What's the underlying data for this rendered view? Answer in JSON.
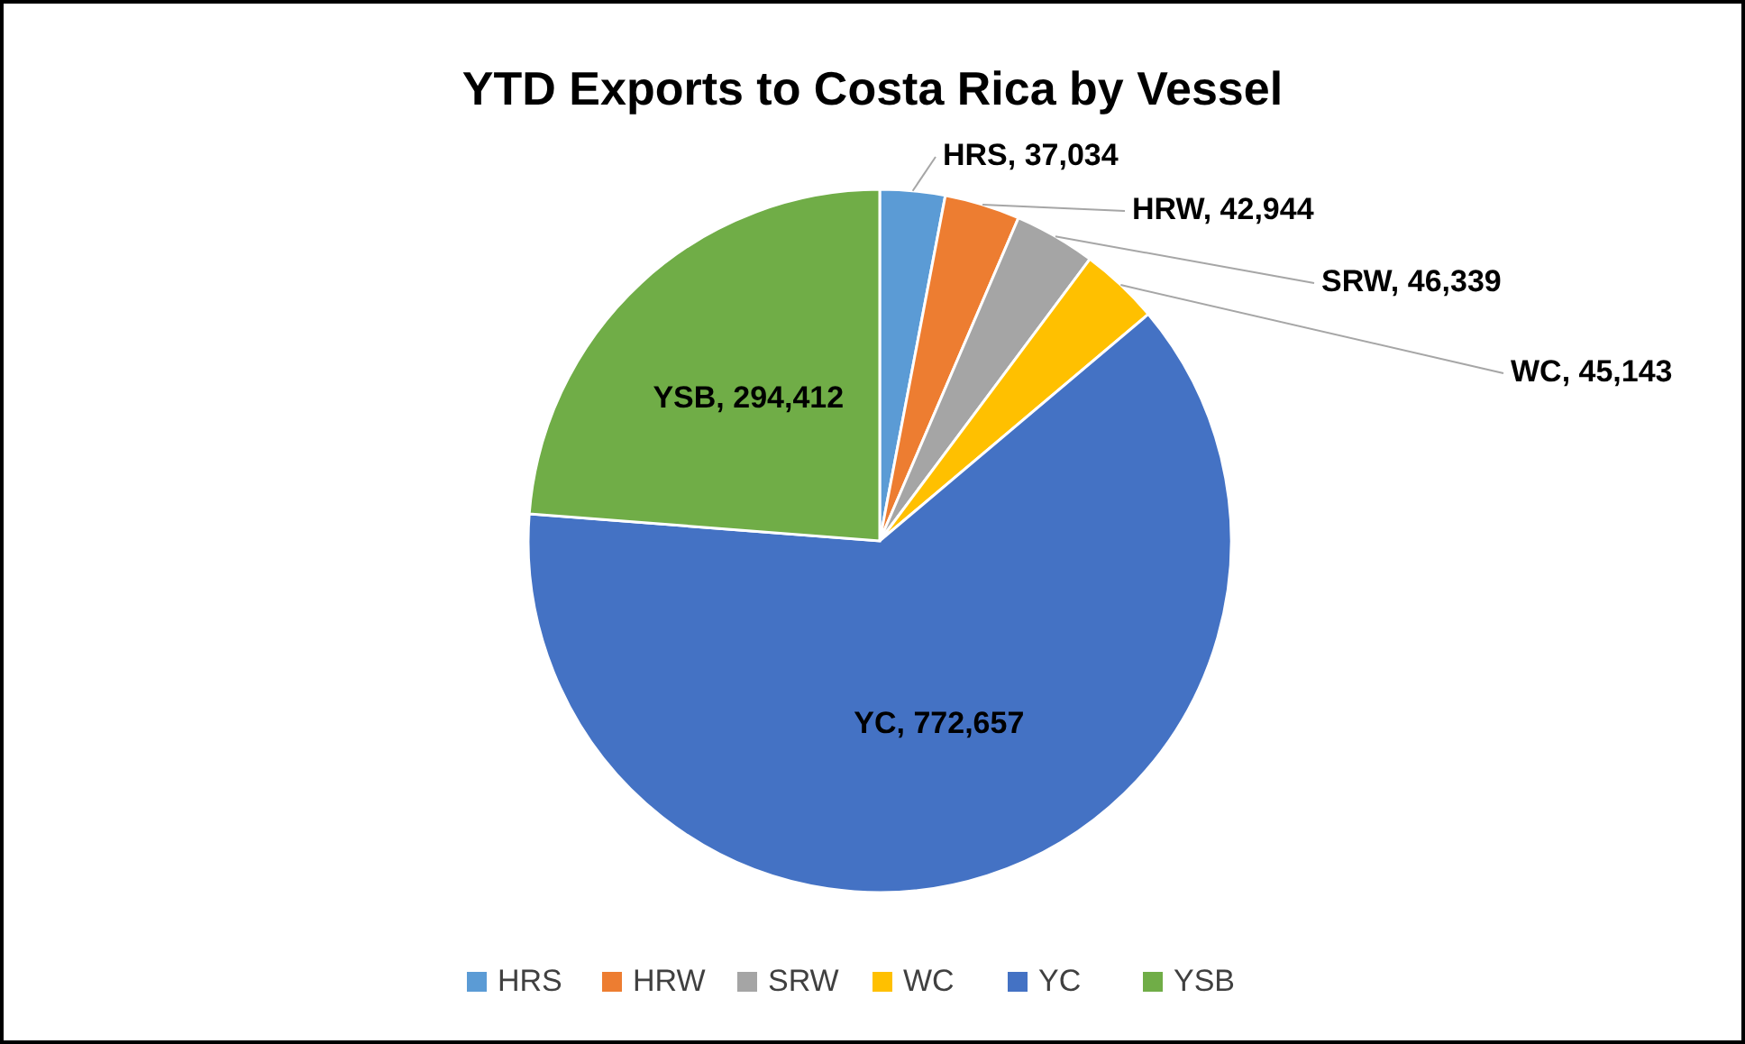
{
  "chart_data": {
    "type": "pie",
    "title": "YTD Exports to Costa Rica by Vessel",
    "categories": [
      "HRS",
      "HRW",
      "SRW",
      "WC",
      "YC",
      "YSB"
    ],
    "values": [
      37034,
      42944,
      46339,
      45143,
      772657,
      294412
    ],
    "colors": [
      "#5b9bd5",
      "#ed7d31",
      "#a5a5a5",
      "#ffc000",
      "#4472c4",
      "#70ad47"
    ],
    "value_labels": [
      "HRS, 37,034",
      "HRW, 42,944",
      "SRW, 46,339",
      "WC, 45,143",
      "YC, 772,657",
      "YSB, 294,412"
    ],
    "legend": "bottom"
  }
}
